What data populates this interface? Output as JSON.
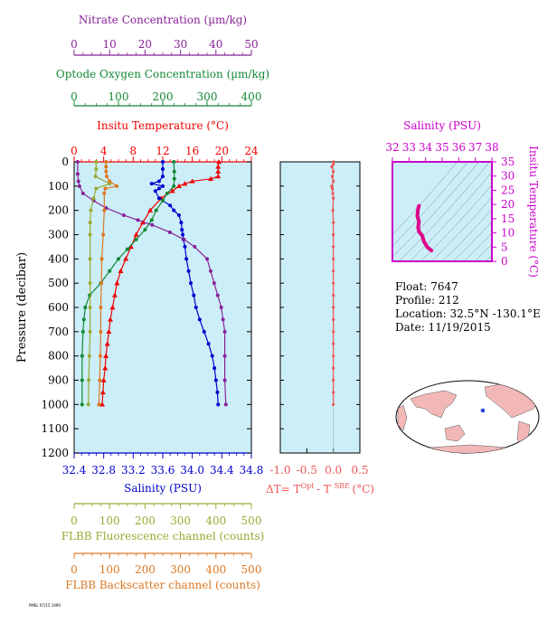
{
  "float_info": {
    "float_line": "Float:  7647",
    "profile_line": "Profile:  212",
    "location_line": "Location:  32.5°N  -130.1°E",
    "date_line": "Date:  11/19/2015"
  },
  "footer_code": "PMEL 07/15 1999",
  "chart_data": [
    {
      "type": "line",
      "name": "main-profile",
      "ylabel": "Pressure (decibar)",
      "ylim": [
        1200,
        0
      ],
      "yticks": [
        0,
        100,
        200,
        300,
        400,
        500,
        600,
        700,
        800,
        900,
        1000,
        1100,
        1200
      ],
      "grid": false,
      "background": "#cceef8",
      "axes": [
        {
          "key": "temp",
          "label": "Insitu Temperature (°C)",
          "color": "#ee0000",
          "range": [
            0,
            24
          ],
          "ticks": [
            "0",
            "4",
            "8",
            "12",
            "16",
            "20",
            "24"
          ]
        },
        {
          "key": "oxy",
          "label": "Optode Oxygen Concentration (µm/kg)",
          "color": "#118833",
          "range": [
            0,
            400
          ],
          "ticks": [
            "0",
            "100",
            "200",
            "300",
            "400"
          ]
        },
        {
          "key": "nit",
          "label": "Nitrate Concentration (µm/kg)",
          "color": "#882299",
          "range": [
            0,
            50
          ],
          "ticks": [
            "0",
            "10",
            "20",
            "30",
            "40",
            "50"
          ]
        },
        {
          "key": "sal",
          "label": "Salinity (PSU)",
          "color": "#0000cc",
          "range": [
            32.4,
            34.8
          ],
          "ticks": [
            "32.4",
            "32.8",
            "33.2",
            "33.6",
            "34.0",
            "34.4",
            "34.8"
          ]
        },
        {
          "key": "fl",
          "label": "FLBB Fluorescence channel (counts)",
          "color": "#99aa33",
          "range": [
            0,
            500
          ],
          "ticks": [
            "0",
            "100",
            "200",
            "300",
            "400",
            "500"
          ]
        },
        {
          "key": "bb",
          "label": "FLBB Backscatter channel (counts)",
          "color": "#dd7722",
          "range": [
            0,
            500
          ],
          "ticks": [
            "0",
            "100",
            "200",
            "300",
            "400",
            "500"
          ]
        }
      ],
      "series": [
        {
          "name": "Insitu Temperature",
          "axis": "temp",
          "color": "#ee0000",
          "marker": "triangle",
          "points": [
            [
              0,
              19.6
            ],
            [
              20,
              19.5
            ],
            [
              40,
              19.5
            ],
            [
              60,
              19.5
            ],
            [
              70,
              18.5
            ],
            [
              80,
              16.0
            ],
            [
              90,
              15.0
            ],
            [
              100,
              14.2
            ],
            [
              120,
              13.3
            ],
            [
              150,
              11.8
            ],
            [
              200,
              10.3
            ],
            [
              250,
              9.3
            ],
            [
              300,
              8.4
            ],
            [
              350,
              7.7
            ],
            [
              400,
              7.0
            ],
            [
              450,
              6.3
            ],
            [
              500,
              5.8
            ],
            [
              550,
              5.5
            ],
            [
              600,
              5.2
            ],
            [
              650,
              4.9
            ],
            [
              700,
              4.7
            ],
            [
              750,
              4.5
            ],
            [
              800,
              4.3
            ],
            [
              850,
              4.2
            ],
            [
              900,
              4.0
            ],
            [
              950,
              3.9
            ],
            [
              1000,
              3.8
            ]
          ]
        },
        {
          "name": "Salinity",
          "axis": "sal",
          "color": "#0000cc",
          "marker": "circle",
          "points": [
            [
              0,
              33.6
            ],
            [
              30,
              33.6
            ],
            [
              60,
              33.6
            ],
            [
              80,
              33.55
            ],
            [
              90,
              33.45
            ],
            [
              100,
              33.6
            ],
            [
              110,
              33.55
            ],
            [
              120,
              33.5
            ],
            [
              150,
              33.55
            ],
            [
              180,
              33.7
            ],
            [
              200,
              33.75
            ],
            [
              220,
              33.82
            ],
            [
              250,
              33.85
            ],
            [
              280,
              33.86
            ],
            [
              300,
              33.87
            ],
            [
              320,
              33.88
            ],
            [
              350,
              33.9
            ],
            [
              400,
              33.92
            ],
            [
              450,
              33.95
            ],
            [
              500,
              33.98
            ],
            [
              550,
              34.02
            ],
            [
              600,
              34.05
            ],
            [
              650,
              34.1
            ],
            [
              700,
              34.16
            ],
            [
              750,
              34.22
            ],
            [
              800,
              34.27
            ],
            [
              850,
              34.3
            ],
            [
              900,
              34.32
            ],
            [
              950,
              34.34
            ],
            [
              1000,
              34.35
            ]
          ]
        },
        {
          "name": "Optode Oxygen",
          "axis": "oxy",
          "color": "#118833",
          "marker": "circle",
          "points": [
            [
              0,
              225
            ],
            [
              40,
              226
            ],
            [
              70,
              226
            ],
            [
              100,
              225
            ],
            [
              130,
              210
            ],
            [
              160,
              200
            ],
            [
              200,
              185
            ],
            [
              240,
              175
            ],
            [
              280,
              160
            ],
            [
              320,
              140
            ],
            [
              360,
              120
            ],
            [
              400,
              100
            ],
            [
              450,
              80
            ],
            [
              500,
              60
            ],
            [
              550,
              35
            ],
            [
              600,
              25
            ],
            [
              650,
              22
            ],
            [
              700,
              20
            ],
            [
              800,
              18
            ],
            [
              900,
              18
            ],
            [
              1000,
              18
            ]
          ]
        },
        {
          "name": "Nitrate",
          "axis": "nit",
          "color": "#882299",
          "marker": "circle",
          "points": [
            [
              0,
              1
            ],
            [
              50,
              1
            ],
            [
              80,
              1.2
            ],
            [
              100,
              1.5
            ],
            [
              130,
              2.5
            ],
            [
              160,
              5.5
            ],
            [
              190,
              9
            ],
            [
              220,
              14
            ],
            [
              240,
              18
            ],
            [
              260,
              22
            ],
            [
              290,
              27
            ],
            [
              320,
              31
            ],
            [
              350,
              34
            ],
            [
              400,
              37.5
            ],
            [
              450,
              38.5
            ],
            [
              500,
              39.5
            ],
            [
              550,
              40.5
            ],
            [
              600,
              41.5
            ],
            [
              650,
              42
            ],
            [
              700,
              42.5
            ],
            [
              800,
              42.5
            ],
            [
              900,
              42.5
            ],
            [
              1000,
              42.8
            ]
          ]
        },
        {
          "name": "FLBB Fluorescence",
          "axis": "fl",
          "color": "#99aa33",
          "marker": "circle",
          "points": [
            [
              0,
              62
            ],
            [
              30,
              62
            ],
            [
              60,
              60
            ],
            [
              90,
              100
            ],
            [
              110,
              62
            ],
            [
              150,
              55
            ],
            [
              200,
              47
            ],
            [
              250,
              45
            ],
            [
              300,
              45
            ],
            [
              400,
              45
            ],
            [
              500,
              45
            ],
            [
              600,
              45
            ],
            [
              700,
              45
            ],
            [
              800,
              43
            ],
            [
              900,
              41
            ],
            [
              1000,
              40
            ]
          ]
        },
        {
          "name": "FLBB Backscatter",
          "axis": "bb",
          "color": "#dd7722",
          "marker": "circle",
          "points": [
            [
              0,
              90
            ],
            [
              20,
              90
            ],
            [
              40,
              90
            ],
            [
              60,
              92
            ],
            [
              80,
              100
            ],
            [
              100,
              120
            ],
            [
              110,
              88
            ],
            [
              130,
              85
            ],
            [
              200,
              85
            ],
            [
              300,
              82
            ],
            [
              400,
              78
            ],
            [
              500,
              77
            ],
            [
              600,
              75
            ],
            [
              700,
              75
            ],
            [
              800,
              74
            ],
            [
              900,
              72
            ],
            [
              1000,
              70
            ]
          ]
        }
      ]
    },
    {
      "type": "line",
      "name": "delta-temperature",
      "xlabel_parts": [
        "ΔT= T",
        "Opt",
        "- T",
        "SBE",
        "(°C)"
      ],
      "color": "#ee5555",
      "xlim": [
        -1.0,
        0.5
      ],
      "xticks": [
        "-1.0",
        "-0.5",
        "0.0",
        "0.5"
      ],
      "ylim": [
        1200,
        0
      ],
      "background": "#cceef8",
      "points": [
        [
          0,
          0
        ],
        [
          10,
          0
        ],
        [
          20,
          -0.03
        ],
        [
          40,
          0
        ],
        [
          60,
          -0.02
        ],
        [
          80,
          0
        ],
        [
          100,
          -0.03
        ],
        [
          110,
          -0.02
        ],
        [
          130,
          -0.01
        ],
        [
          150,
          0
        ],
        [
          200,
          -0.01
        ],
        [
          250,
          0
        ],
        [
          300,
          0
        ],
        [
          350,
          0
        ],
        [
          400,
          0
        ],
        [
          450,
          0
        ],
        [
          500,
          0
        ],
        [
          550,
          0
        ],
        [
          600,
          0
        ],
        [
          650,
          0
        ],
        [
          700,
          0
        ],
        [
          750,
          0
        ],
        [
          800,
          0
        ],
        [
          850,
          0
        ],
        [
          900,
          0
        ],
        [
          950,
          0
        ],
        [
          1000,
          0
        ]
      ]
    },
    {
      "type": "line",
      "name": "ts-diagram",
      "title": "Salinity (PSU)",
      "xlabel": "Salinity (PSU)",
      "ylabel": "Insitu Temperature (°C)",
      "color": "#dd0088",
      "xlim": [
        32,
        38
      ],
      "xticks": [
        "32",
        "33",
        "34",
        "35",
        "36",
        "37",
        "38"
      ],
      "ylim": [
        0,
        35
      ],
      "yticks": [
        "0",
        "5",
        "10",
        "15",
        "20",
        "25",
        "30",
        "35"
      ],
      "points": [
        [
          33.6,
          19.5
        ],
        [
          33.55,
          18.5
        ],
        [
          33.5,
          16
        ],
        [
          33.6,
          14
        ],
        [
          33.55,
          12
        ],
        [
          33.6,
          10.5
        ],
        [
          33.8,
          9
        ],
        [
          33.85,
          8
        ],
        [
          33.9,
          7
        ],
        [
          34.0,
          6
        ],
        [
          34.1,
          5
        ],
        [
          34.25,
          4.3
        ],
        [
          34.35,
          3.8
        ]
      ]
    }
  ]
}
